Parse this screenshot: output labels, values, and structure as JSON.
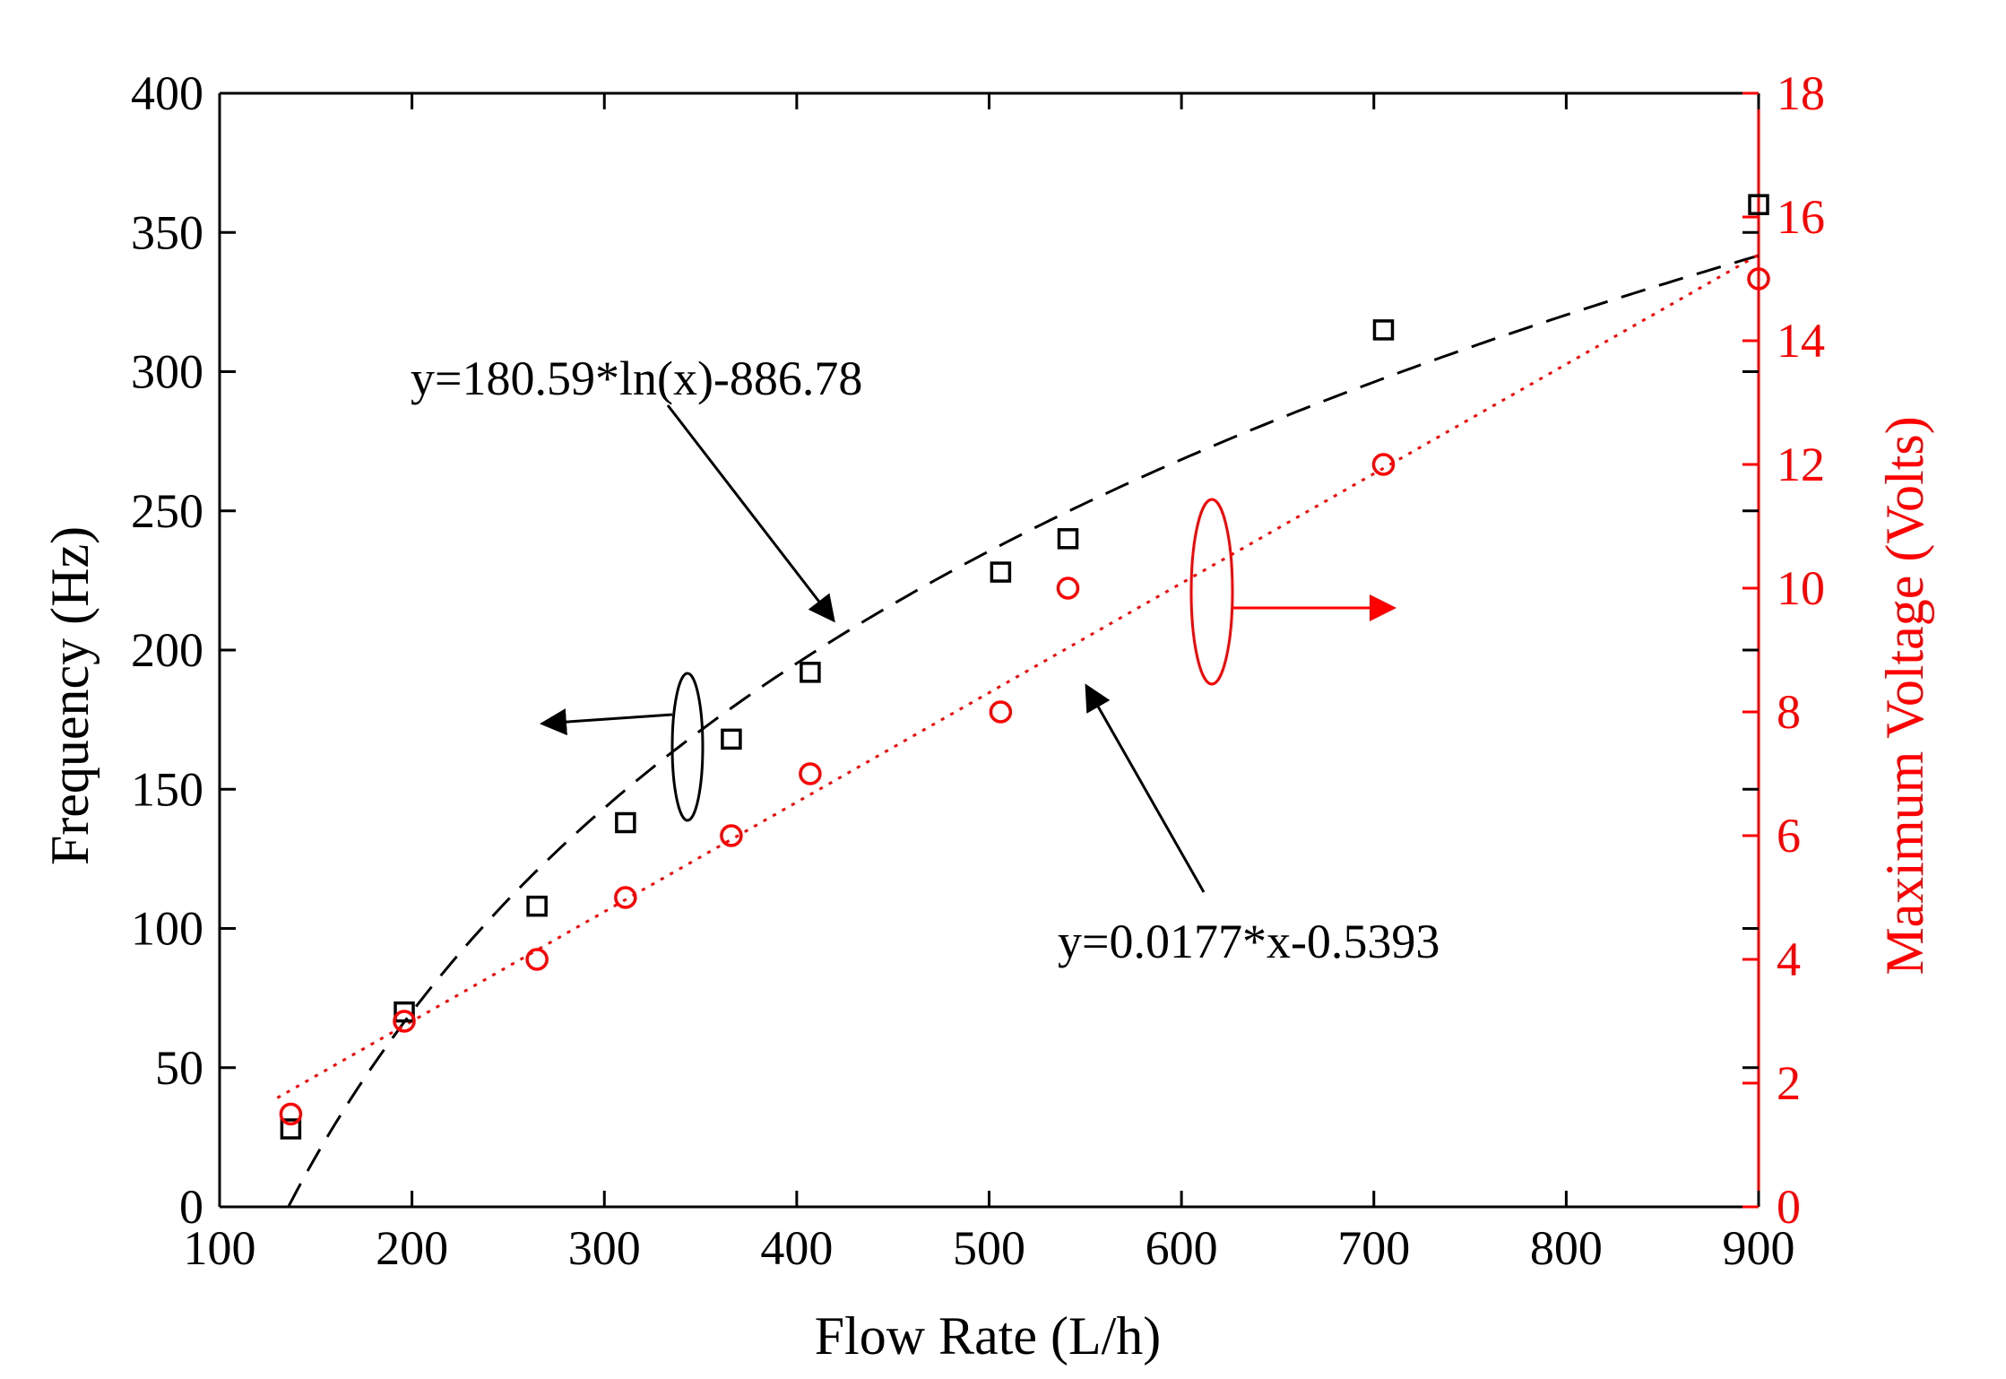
{
  "chart_data": {
    "type": "scatter",
    "xlabel": "Flow Rate (L/h)",
    "ylabel": "Frequency (Hz)",
    "y2label": "Maximum Voltage (Volts)",
    "xlim": [
      100,
      900
    ],
    "ylim": [
      0,
      400
    ],
    "y2lim": [
      0,
      18
    ],
    "xticks": [
      "100",
      "200",
      "300",
      "400",
      "500",
      "600",
      "700",
      "800",
      "900"
    ],
    "yticks": [
      "0",
      "50",
      "100",
      "150",
      "200",
      "250",
      "300",
      "350",
      "400"
    ],
    "y2ticks": [
      "0",
      "2",
      "4",
      "6",
      "8",
      "10",
      "12",
      "14",
      "16",
      "18"
    ],
    "colors": {
      "primary": "#000000",
      "secondary": "#ff0000"
    },
    "series": [
      {
        "name": "Frequency",
        "axis": "left",
        "marker": "square",
        "x": [
          137,
          196,
          265,
          311,
          366,
          407,
          506,
          541,
          705,
          900
        ],
        "y": [
          28,
          70,
          108,
          138,
          168,
          192,
          228,
          240,
          315,
          360
        ]
      },
      {
        "name": "Maximum Voltage",
        "axis": "right",
        "marker": "circle",
        "x": [
          137,
          196,
          265,
          311,
          366,
          407,
          506,
          541,
          705,
          900
        ],
        "y": [
          1.5,
          3,
          4,
          5,
          6,
          7,
          8,
          10,
          12,
          15
        ]
      }
    ],
    "fits": [
      {
        "label": "y=180.59*ln(x)-886.78",
        "model": "log",
        "a": 180.59,
        "b": -886.78,
        "axis": "left",
        "x_range": [
          136,
          900
        ]
      },
      {
        "label": "y=0.0177*x-0.5393",
        "model": "linear",
        "a": 0.0177,
        "b": -0.5393,
        "axis": "right",
        "x_range": [
          130,
          900
        ]
      }
    ]
  }
}
